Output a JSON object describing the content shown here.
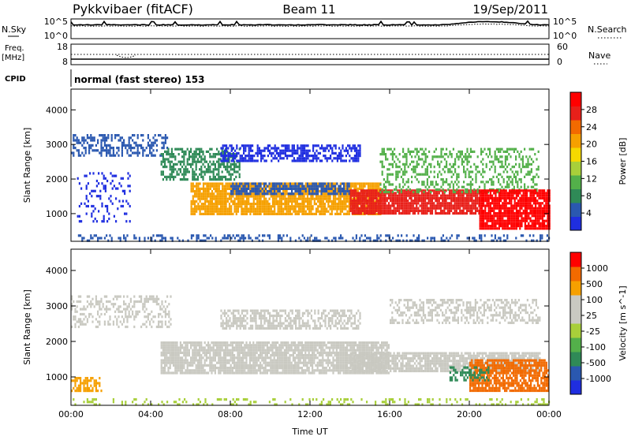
{
  "header": {
    "station": "Pykkvibaer (fitACF)",
    "beam": "Beam 11",
    "date": "19/Sep/2011"
  },
  "top_panels": {
    "nsky_label": "N.Sky",
    "nsky_ticks": [
      "10^5",
      "10^0"
    ],
    "nsearch_label": "N.Search",
    "nsearch_ticks": [
      "10^5",
      "10^0"
    ],
    "freq_label_1": "Freq.",
    "freq_label_2": "[MHz]",
    "freq_ticks": [
      "18",
      "8"
    ],
    "nave_label": "Nave",
    "nave_ticks": [
      "60",
      "0"
    ],
    "cpid_label": "CPID",
    "cpid_text": "normal (fast stereo) 153"
  },
  "chart_data": [
    {
      "type": "heatmap",
      "name": "power-panel",
      "ylabel": "Slant Range [km]",
      "ylim": [
        200,
        4600
      ],
      "yticks": [
        1000,
        2000,
        3000,
        4000
      ],
      "xlim": [
        0,
        24
      ],
      "colorbar_label": "Power [dB]",
      "colorbar_ticks": [
        4,
        8,
        12,
        16,
        20,
        24,
        28
      ],
      "colorbar_colors": [
        "#1f2ee0",
        "#2a58b0",
        "#2f8a57",
        "#53b04a",
        "#a8cf3a",
        "#f5d800",
        "#f6a000",
        "#f26a00",
        "#e8201a",
        "#ff0000"
      ],
      "bands": [
        {
          "x0": 0.0,
          "x1": 4.8,
          "y0": 2700,
          "y1": 3300,
          "color": "#2a58b0",
          "density": 0.45
        },
        {
          "x0": 0.3,
          "x1": 3.0,
          "y0": 800,
          "y1": 2200,
          "color": "#1f2ee0",
          "density": 0.2
        },
        {
          "x0": 4.5,
          "x1": 8.5,
          "y0": 2000,
          "y1": 2900,
          "color": "#2f8a57",
          "density": 0.55
        },
        {
          "x0": 6.0,
          "x1": 15.5,
          "y0": 1000,
          "y1": 1900,
          "color": "#f6a000",
          "density": 0.85
        },
        {
          "x0": 7.5,
          "x1": 14.5,
          "y0": 2500,
          "y1": 3000,
          "color": "#1f2ee0",
          "density": 0.6
        },
        {
          "x0": 8.0,
          "x1": 14.0,
          "y0": 1600,
          "y1": 1900,
          "color": "#2a58b0",
          "density": 0.7
        },
        {
          "x0": 14.0,
          "x1": 20.5,
          "y0": 1000,
          "y1": 1700,
          "color": "#e8201a",
          "density": 0.9
        },
        {
          "x0": 15.5,
          "x1": 23.5,
          "y0": 1600,
          "y1": 2900,
          "color": "#53b04a",
          "density": 0.35
        },
        {
          "x0": 20.5,
          "x1": 24.0,
          "y0": 600,
          "y1": 1700,
          "color": "#ff0000",
          "density": 0.9
        },
        {
          "x0": 0.0,
          "x1": 24.0,
          "y0": 200,
          "y1": 400,
          "color": "#2a58b0",
          "density": 0.3
        }
      ]
    },
    {
      "type": "heatmap",
      "name": "velocity-panel",
      "ylabel": "Slant Range [km]",
      "ylim": [
        200,
        4600
      ],
      "yticks": [
        1000,
        2000,
        3000,
        4000
      ],
      "xlim": [
        0,
        24
      ],
      "xticks": [
        "00:00",
        "04:00",
        "08:00",
        "12:00",
        "16:00",
        "20:00",
        "00:00"
      ],
      "xlabel": "Time UT",
      "colorbar_label": "Velocity [m s^-1]",
      "colorbar_ticks": [
        1000,
        500,
        100,
        25,
        -25,
        -100,
        -500,
        -1000
      ],
      "colorbar_colors": [
        "#1f2ee0",
        "#2a58b0",
        "#2f8a57",
        "#53b04a",
        "#a8cf3a",
        "#c9c9c1",
        "#c9c9c1",
        "#f6a000",
        "#f26a00",
        "#ff0000"
      ],
      "bands": [
        {
          "x0": 0.0,
          "x1": 5.0,
          "y0": 2400,
          "y1": 3300,
          "color": "#c9c9c1",
          "density": 0.35
        },
        {
          "x0": 0.0,
          "x1": 1.5,
          "y0": 600,
          "y1": 1000,
          "color": "#f6a000",
          "density": 0.6
        },
        {
          "x0": 4.5,
          "x1": 16.0,
          "y0": 1100,
          "y1": 2000,
          "color": "#c9c9c1",
          "density": 0.85
        },
        {
          "x0": 7.5,
          "x1": 14.5,
          "y0": 2400,
          "y1": 2900,
          "color": "#c9c9c1",
          "density": 0.6
        },
        {
          "x0": 14.0,
          "x1": 23.5,
          "y0": 1200,
          "y1": 1700,
          "color": "#c9c9c1",
          "density": 0.8
        },
        {
          "x0": 16.0,
          "x1": 23.5,
          "y0": 2500,
          "y1": 3200,
          "color": "#c9c9c1",
          "density": 0.45
        },
        {
          "x0": 20.0,
          "x1": 24.0,
          "y0": 600,
          "y1": 1500,
          "color": "#f26a00",
          "density": 0.8
        },
        {
          "x0": 19.0,
          "x1": 21.0,
          "y0": 900,
          "y1": 1300,
          "color": "#2f8a57",
          "density": 0.5
        },
        {
          "x0": 0.0,
          "x1": 24.0,
          "y0": 200,
          "y1": 400,
          "color": "#a8cf3a",
          "density": 0.25
        }
      ]
    }
  ]
}
